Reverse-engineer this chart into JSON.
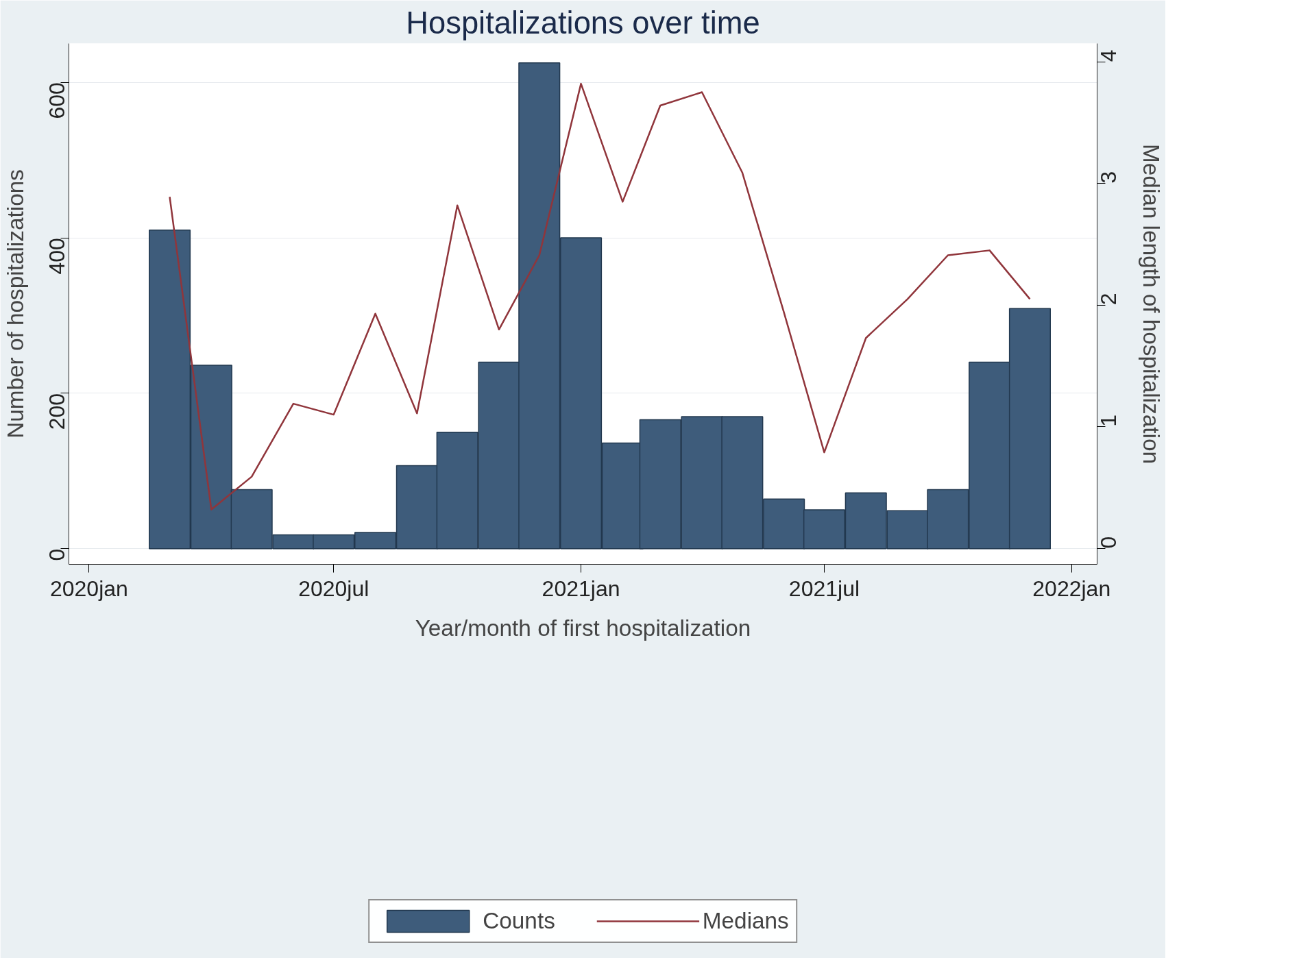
{
  "chart_data": {
    "type": "bar",
    "title": "Hospitalizations over time",
    "xlabel": "Year/month of first hospitalization",
    "ylabel": "Number of hospitalizations",
    "y2label": "Median length of hospitalization",
    "x": [
      "2020-03",
      "2020-04",
      "2020-05",
      "2020-06",
      "2020-07",
      "2020-08",
      "2020-09",
      "2020-10",
      "2020-11",
      "2020-12",
      "2021-01",
      "2021-02",
      "2021-03",
      "2021-04",
      "2021-05",
      "2021-06",
      "2021-07",
      "2021-08",
      "2021-09",
      "2021-10",
      "2021-11",
      "2021-12"
    ],
    "series": [
      {
        "name": "Counts",
        "color": "#3e5c7b",
        "values": [
          410,
          236,
          76,
          18,
          18,
          21,
          107,
          150,
          240,
          625,
          400,
          136,
          166,
          170,
          170,
          64,
          50,
          72,
          49,
          76,
          240,
          309
        ]
      },
      {
        "name": "Medians",
        "type": "line",
        "axis": "y2",
        "color": "#90353b",
        "values": [
          2.89,
          0.32,
          0.59,
          1.19,
          1.1,
          1.93,
          1.11,
          2.82,
          1.8,
          2.41,
          3.82,
          2.85,
          3.64,
          3.75,
          3.09,
          1.94,
          0.79,
          1.73,
          2.05,
          2.41,
          2.45,
          2.05
        ]
      }
    ],
    "xlim": [
      "2019-12-17",
      "2022-01-20"
    ],
    "xticks": [
      {
        "value": "2020-01",
        "label": "2020jan"
      },
      {
        "value": "2020-07",
        "label": "2020jul"
      },
      {
        "value": "2021-01",
        "label": "2021jan"
      },
      {
        "value": "2021-07",
        "label": "2021jul"
      },
      {
        "value": "2022-01",
        "label": "2022jan"
      }
    ],
    "ylim": [
      -20,
      650
    ],
    "yticks": [
      0,
      200,
      400,
      600
    ],
    "y2lim": [
      -0.13,
      4.15
    ],
    "y2ticks": [
      0,
      1,
      2,
      3,
      4
    ],
    "grid": "y",
    "legend": "bottom",
    "marker": "none",
    "line_style": "solid"
  }
}
